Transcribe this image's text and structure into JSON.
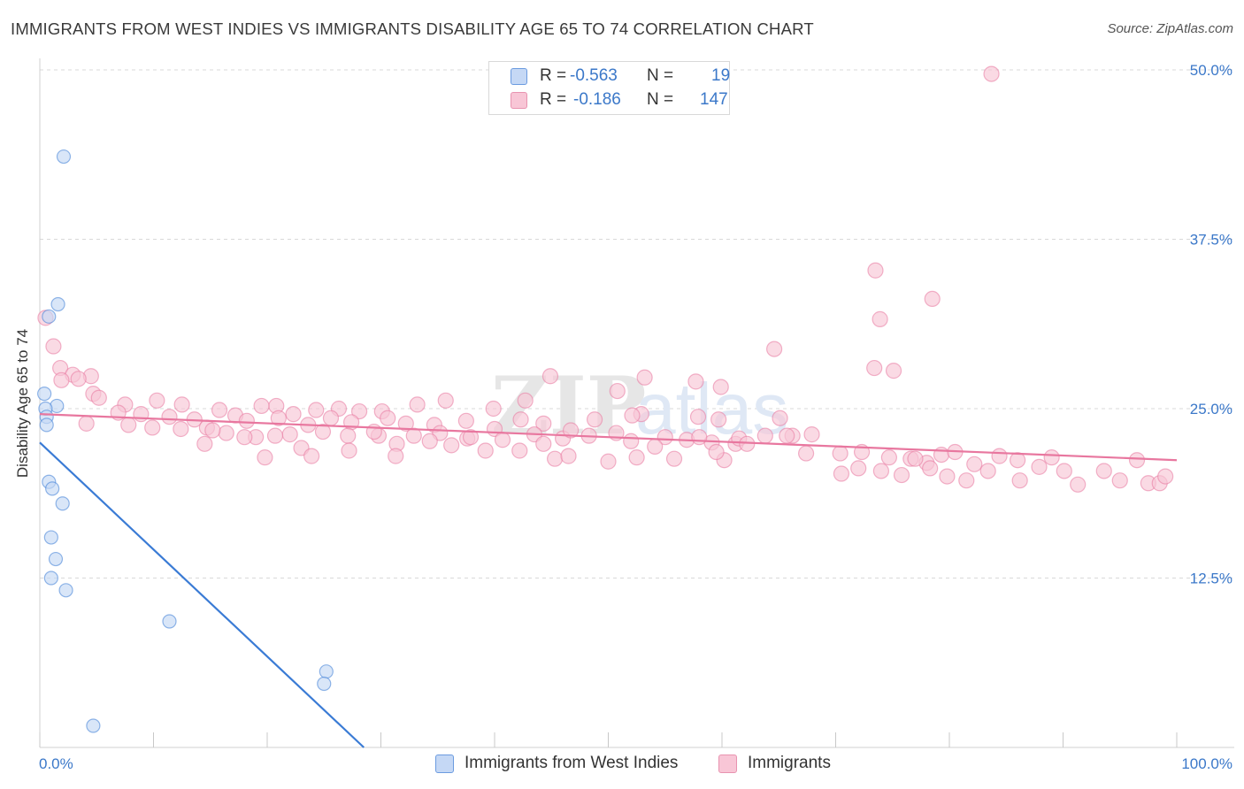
{
  "title": "IMMIGRANTS FROM WEST INDIES VS IMMIGRANTS DISABILITY AGE 65 TO 74 CORRELATION CHART",
  "source": "Source: ZipAtlas.com",
  "colors": {
    "blue": "#3a7bd5",
    "blue_fill": "#c5d8f5",
    "pink": "#e8779f",
    "pink_fill": "#f8c6d6",
    "value_text": "#3b78c9",
    "grid": "#d8d8d8"
  },
  "legend": {
    "r_label": "R =",
    "n_label": "N =",
    "rows": [
      {
        "r": "-0.563",
        "n": "19"
      },
      {
        "r": "-0.186",
        "n": "147"
      }
    ]
  },
  "watermark": {
    "zip": "ZIP",
    "atlas": "atlas"
  },
  "chart_data": {
    "type": "scatter",
    "title": "IMMIGRANTS FROM WEST INDIES VS IMMIGRANTS DISABILITY AGE 65 TO 74 CORRELATION CHART",
    "xlabel": "",
    "ylabel": "Disability Age 65 to 74",
    "xlim": [
      0,
      100
    ],
    "ylim": [
      0,
      50
    ],
    "x_tick_labels": [
      "0.0%",
      "100.0%"
    ],
    "y_ticks": [
      {
        "value": 12.5,
        "label": "12.5%"
      },
      {
        "value": 25.0,
        "label": "25.0%"
      },
      {
        "value": 37.5,
        "label": "37.5%"
      },
      {
        "value": 50.0,
        "label": "50.0%"
      }
    ],
    "series": [
      {
        "name": "Immigrants from West Indies",
        "color": "#3a7bd5",
        "fill": "#c5d8f5",
        "trend": {
          "x0": 0,
          "y0": 22.5,
          "x1": 28.5,
          "y1": 0
        },
        "points": [
          [
            2.1,
            43.6
          ],
          [
            1.6,
            32.7
          ],
          [
            0.8,
            31.8
          ],
          [
            0.4,
            26.1
          ],
          [
            1.5,
            25.2
          ],
          [
            0.5,
            25.0
          ],
          [
            0.6,
            24.4
          ],
          [
            0.6,
            23.8
          ],
          [
            0.8,
            19.6
          ],
          [
            1.1,
            19.1
          ],
          [
            2.0,
            18.0
          ],
          [
            1.0,
            15.5
          ],
          [
            1.4,
            13.9
          ],
          [
            1.0,
            12.5
          ],
          [
            2.3,
            11.6
          ],
          [
            11.4,
            9.3
          ],
          [
            25.2,
            5.6
          ],
          [
            25.0,
            4.7
          ],
          [
            4.7,
            1.6
          ]
        ]
      },
      {
        "name": "Immigrants",
        "color": "#e8779f",
        "fill": "#f8c6d6",
        "trend": {
          "x0": 0,
          "y0": 24.6,
          "x1": 100,
          "y1": 21.2
        },
        "points": [
          [
            83.7,
            49.7
          ],
          [
            73.5,
            35.2
          ],
          [
            78.5,
            33.1
          ],
          [
            73.9,
            31.6
          ],
          [
            0.5,
            31.7
          ],
          [
            1.2,
            29.6
          ],
          [
            64.6,
            29.4
          ],
          [
            1.8,
            28.0
          ],
          [
            73.4,
            28.0
          ],
          [
            75.1,
            27.8
          ],
          [
            2.9,
            27.5
          ],
          [
            4.5,
            27.4
          ],
          [
            3.4,
            27.2
          ],
          [
            44.9,
            27.4
          ],
          [
            57.7,
            27.0
          ],
          [
            1.9,
            27.1
          ],
          [
            4.7,
            26.1
          ],
          [
            5.2,
            25.8
          ],
          [
            10.3,
            25.6
          ],
          [
            20.8,
            25.2
          ],
          [
            7.5,
            25.3
          ],
          [
            12.5,
            25.3
          ],
          [
            15.8,
            24.9
          ],
          [
            19.5,
            25.2
          ],
          [
            17.2,
            24.5
          ],
          [
            22.3,
            24.6
          ],
          [
            24.3,
            24.9
          ],
          [
            26.3,
            25.0
          ],
          [
            28.1,
            24.8
          ],
          [
            30.1,
            24.8
          ],
          [
            33.2,
            25.3
          ],
          [
            35.7,
            25.6
          ],
          [
            39.9,
            25.0
          ],
          [
            42.7,
            25.6
          ],
          [
            50.8,
            26.3
          ],
          [
            53.2,
            27.3
          ],
          [
            59.9,
            26.6
          ],
          [
            59.7,
            24.2
          ],
          [
            52.9,
            24.6
          ],
          [
            65.1,
            24.3
          ],
          [
            6.9,
            24.7
          ],
          [
            8.9,
            24.6
          ],
          [
            11.4,
            24.4
          ],
          [
            13.6,
            24.2
          ],
          [
            18.2,
            24.1
          ],
          [
            21.0,
            24.3
          ],
          [
            23.6,
            23.8
          ],
          [
            25.6,
            24.3
          ],
          [
            27.4,
            24.0
          ],
          [
            30.6,
            24.3
          ],
          [
            32.2,
            23.9
          ],
          [
            34.7,
            23.8
          ],
          [
            37.5,
            24.1
          ],
          [
            40.0,
            23.5
          ],
          [
            42.3,
            24.2
          ],
          [
            44.3,
            23.9
          ],
          [
            48.8,
            24.2
          ],
          [
            52.1,
            24.5
          ],
          [
            57.9,
            24.4
          ],
          [
            4.1,
            23.9
          ],
          [
            7.8,
            23.8
          ],
          [
            9.9,
            23.6
          ],
          [
            12.4,
            23.5
          ],
          [
            14.7,
            23.6
          ],
          [
            16.4,
            23.2
          ],
          [
            19.0,
            22.9
          ],
          [
            22.0,
            23.1
          ],
          [
            24.9,
            23.3
          ],
          [
            27.1,
            23.0
          ],
          [
            29.8,
            23.0
          ],
          [
            32.9,
            23.0
          ],
          [
            35.2,
            23.2
          ],
          [
            37.6,
            22.8
          ],
          [
            40.7,
            22.7
          ],
          [
            43.5,
            23.1
          ],
          [
            46.0,
            22.8
          ],
          [
            48.3,
            23.0
          ],
          [
            50.7,
            23.2
          ],
          [
            52.0,
            22.6
          ],
          [
            55.0,
            22.9
          ],
          [
            59.1,
            22.5
          ],
          [
            61.2,
            22.4
          ],
          [
            66.2,
            23.0
          ],
          [
            67.9,
            23.1
          ],
          [
            14.5,
            22.4
          ],
          [
            23.0,
            22.1
          ],
          [
            27.2,
            21.9
          ],
          [
            31.4,
            22.4
          ],
          [
            36.2,
            22.3
          ],
          [
            39.2,
            21.9
          ],
          [
            42.2,
            21.9
          ],
          [
            45.3,
            21.3
          ],
          [
            46.5,
            21.5
          ],
          [
            50.0,
            21.1
          ],
          [
            52.5,
            21.4
          ],
          [
            55.8,
            21.3
          ],
          [
            60.2,
            21.2
          ],
          [
            70.4,
            21.7
          ],
          [
            79.3,
            21.6
          ],
          [
            18.0,
            22.9
          ],
          [
            19.8,
            21.4
          ],
          [
            23.9,
            21.5
          ],
          [
            31.3,
            21.5
          ],
          [
            15.2,
            23.4
          ],
          [
            20.7,
            23.0
          ],
          [
            29.4,
            23.3
          ],
          [
            34.3,
            22.6
          ],
          [
            37.9,
            22.9
          ],
          [
            44.3,
            22.4
          ],
          [
            54.1,
            22.2
          ],
          [
            56.9,
            22.7
          ],
          [
            46.7,
            23.4
          ],
          [
            61.5,
            22.8
          ],
          [
            62.2,
            22.4
          ],
          [
            63.8,
            23.0
          ],
          [
            65.7,
            23.0
          ],
          [
            58.0,
            22.9
          ],
          [
            59.5,
            21.8
          ],
          [
            67.4,
            21.7
          ],
          [
            72.3,
            21.8
          ],
          [
            74.7,
            21.4
          ],
          [
            76.6,
            21.3
          ],
          [
            78.0,
            21.0
          ],
          [
            82.2,
            20.9
          ],
          [
            84.4,
            21.5
          ],
          [
            87.9,
            20.7
          ],
          [
            90.1,
            20.4
          ],
          [
            93.6,
            20.4
          ],
          [
            96.5,
            21.2
          ],
          [
            97.5,
            19.5
          ],
          [
            98.5,
            19.5
          ],
          [
            74.0,
            20.4
          ],
          [
            75.8,
            20.1
          ],
          [
            78.3,
            20.6
          ],
          [
            79.8,
            20.0
          ],
          [
            81.5,
            19.7
          ],
          [
            83.4,
            20.4
          ],
          [
            86.2,
            19.7
          ],
          [
            91.3,
            19.4
          ],
          [
            95.0,
            19.7
          ],
          [
            99.0,
            20.0
          ],
          [
            80.5,
            21.8
          ],
          [
            89.0,
            21.4
          ],
          [
            86.0,
            21.2
          ],
          [
            77.0,
            21.3
          ],
          [
            72.0,
            20.6
          ],
          [
            70.5,
            20.2
          ]
        ]
      }
    ]
  },
  "bottom_legend": [
    {
      "label": "Immigrants from West Indies"
    },
    {
      "label": "Immigrants"
    }
  ]
}
